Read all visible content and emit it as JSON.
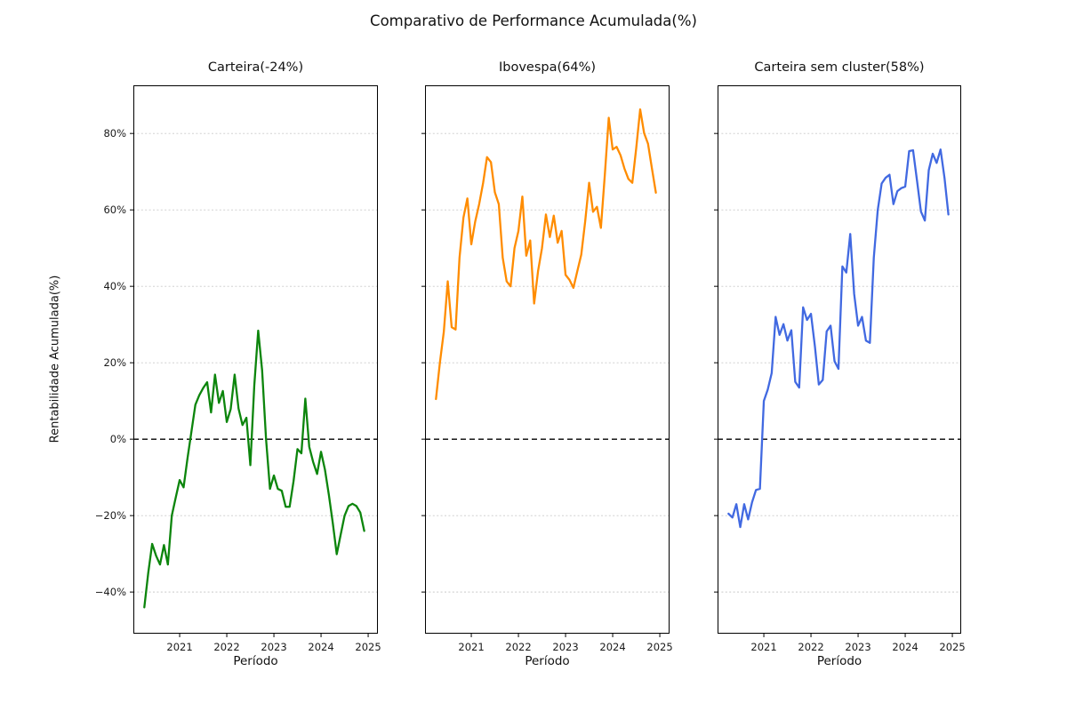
{
  "figure": {
    "title": "Comparativo de Performance Acumulada(%)"
  },
  "axes": {
    "ylabel": "Rentabilidade Acumulada(%)",
    "xlabel": "Período",
    "ylim": [
      -50.9,
      92.6
    ],
    "grid": "horizontal-dashed-light",
    "zero_line_style": "black-dashed",
    "yticks": [
      {
        "value": 80,
        "label": "80%"
      },
      {
        "value": 60,
        "label": "60%"
      },
      {
        "value": 40,
        "label": "40%"
      },
      {
        "value": 20,
        "label": "20%"
      },
      {
        "value": 0,
        "label": "0%"
      },
      {
        "value": -20,
        "label": "−20%"
      },
      {
        "value": -40,
        "label": "−40%"
      }
    ],
    "xticks": [
      {
        "label": "2021",
        "month_index": 9
      },
      {
        "label": "2022",
        "month_index": 21
      },
      {
        "label": "2023",
        "month_index": 33
      },
      {
        "label": "2024",
        "month_index": 45
      },
      {
        "label": "2025",
        "month_index": 57
      }
    ]
  },
  "chart_data": [
    {
      "type": "line",
      "title": "Carteira(-24%)",
      "series_name": "Carteira",
      "final_return_pct": -24,
      "color": "#0c850c",
      "x_start": "2020-04",
      "x_freq": "monthly",
      "show_ytick_labels": true,
      "values": [
        -44.0,
        -35.0,
        -27.4,
        -30.5,
        -32.8,
        -27.7,
        -32.8,
        -20.0,
        -15.3,
        -10.7,
        -12.6,
        -5.0,
        2.0,
        9.0,
        11.5,
        13.4,
        14.9,
        7.0,
        16.9,
        9.5,
        12.6,
        4.5,
        7.9,
        16.9,
        8.0,
        3.7,
        5.6,
        -6.8,
        14.0,
        28.4,
        18.0,
        0.0,
        -13.0,
        -9.5,
        -13.0,
        -13.5,
        -17.7,
        -17.7,
        -11.0,
        -2.6,
        -3.7,
        10.6,
        -2.0,
        -6.0,
        -9.1,
        -3.3,
        -8.0,
        -14.6,
        -22.0,
        -30.1,
        -25.0,
        -20.0,
        -17.5,
        -16.9,
        -17.5,
        -19.2,
        -24.0
      ]
    },
    {
      "type": "line",
      "title": "Ibovespa(64%)",
      "series_name": "Ibovespa",
      "final_return_pct": 64,
      "color": "#ff8c00",
      "x_start": "2020-04",
      "x_freq": "monthly",
      "show_ytick_labels": false,
      "values": [
        10.5,
        20.0,
        28.1,
        41.3,
        29.3,
        28.7,
        47.5,
        58.0,
        63.0,
        51.0,
        57.0,
        61.5,
        67.0,
        73.8,
        72.5,
        64.6,
        61.5,
        47.5,
        41.3,
        40.0,
        50.0,
        54.5,
        63.5,
        48.0,
        52.0,
        35.5,
        44.0,
        50.0,
        58.8,
        52.9,
        58.5,
        51.4,
        54.5,
        43.0,
        41.7,
        39.6,
        44.0,
        48.3,
        57.0,
        67.1,
        59.5,
        60.8,
        55.3,
        69.2,
        84.1,
        75.8,
        76.5,
        74.3,
        70.8,
        68.1,
        67.1,
        76.2,
        86.3,
        80.1,
        77.3,
        70.8,
        64.5
      ]
    },
    {
      "type": "line",
      "title": "Carteira sem cluster(58%)",
      "series_name": "Carteira sem cluster",
      "final_return_pct": 58,
      "color": "#4169e1",
      "x_start": "2020-04",
      "x_freq": "monthly",
      "show_ytick_labels": false,
      "values": [
        -19.5,
        -20.5,
        -17.0,
        -23.0,
        -17.0,
        -21.0,
        -16.5,
        -13.3,
        -13.0,
        10.0,
        13.0,
        17.3,
        32.0,
        27.3,
        30.1,
        25.8,
        28.5,
        15.0,
        13.5,
        34.5,
        31.2,
        32.8,
        24.3,
        14.3,
        15.5,
        28.2,
        29.7,
        20.4,
        18.4,
        45.2,
        43.6,
        53.7,
        38.0,
        29.7,
        32.0,
        25.8,
        25.2,
        47.5,
        59.9,
        66.9,
        68.4,
        69.2,
        61.5,
        64.9,
        65.7,
        66.1,
        75.4,
        75.6,
        67.7,
        59.6,
        57.2,
        70.4,
        74.7,
        72.3,
        75.8,
        68.4,
        58.8
      ]
    }
  ]
}
